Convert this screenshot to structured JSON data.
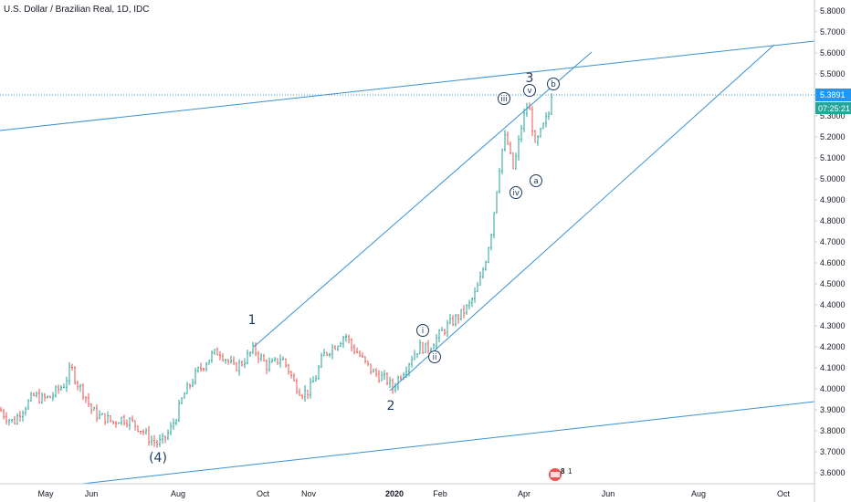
{
  "chart_data": {
    "type": "candlestick",
    "title": "U.S. Dollar / Brazilian Real, 1D, IDC",
    "y_ticks": [
      "5.8000",
      "5.7000",
      "5.6000",
      "5.5000",
      "5.3000",
      "5.2000",
      "5.1000",
      "5.0000",
      "4.9000",
      "4.8000",
      "4.7000",
      "4.6000",
      "4.5000",
      "4.4000",
      "4.3000",
      "4.2000",
      "4.1000",
      "4.0000",
      "3.9000",
      "3.8000",
      "3.7000",
      "3.6000"
    ],
    "x_ticks": [
      "May",
      "Jun",
      "Aug",
      "Oct",
      "Nov",
      "2020",
      "Feb",
      "Apr",
      "Jun",
      "Aug",
      "Oct"
    ],
    "ylim": [
      3.55,
      5.85
    ],
    "current_price": "5.3891",
    "countdown": "07:25:21",
    "colors": {
      "up": "#26a69a",
      "down": "#ef5350",
      "line": "#3a92d6",
      "label": "#1e3a5f",
      "price_tag": "#2196f3"
    },
    "price_path": [
      [
        0,
        3.9
      ],
      [
        8,
        3.86
      ],
      [
        15,
        3.84
      ],
      [
        22,
        3.89
      ],
      [
        30,
        3.93
      ],
      [
        38,
        3.97
      ],
      [
        45,
        3.95
      ],
      [
        55,
        3.96
      ],
      [
        62,
        3.99
      ],
      [
        70,
        4.02
      ],
      [
        78,
        4.1
      ],
      [
        84,
        4.03
      ],
      [
        92,
        3.98
      ],
      [
        100,
        3.9
      ],
      [
        108,
        3.87
      ],
      [
        116,
        3.86
      ],
      [
        124,
        3.84
      ],
      [
        132,
        3.86
      ],
      [
        140,
        3.85
      ],
      [
        148,
        3.83
      ],
      [
        156,
        3.8
      ],
      [
        164,
        3.76
      ],
      [
        172,
        3.74
      ],
      [
        178,
        3.75
      ],
      [
        186,
        3.8
      ],
      [
        194,
        3.88
      ],
      [
        200,
        3.96
      ],
      [
        208,
        4.02
      ],
      [
        216,
        4.08
      ],
      [
        224,
        4.12
      ],
      [
        232,
        4.16
      ],
      [
        240,
        4.18
      ],
      [
        248,
        4.14
      ],
      [
        256,
        4.1
      ],
      [
        264,
        4.12
      ],
      [
        272,
        4.16
      ],
      [
        278,
        4.19
      ],
      [
        285,
        4.15
      ],
      [
        292,
        4.11
      ],
      [
        300,
        4.12
      ],
      [
        308,
        4.15
      ],
      [
        315,
        4.1
      ],
      [
        322,
        4.03
      ],
      [
        330,
        3.98
      ],
      [
        338,
        3.99
      ],
      [
        346,
        4.06
      ],
      [
        354,
        4.16
      ],
      [
        362,
        4.19
      ],
      [
        370,
        4.22
      ],
      [
        378,
        4.26
      ],
      [
        385,
        4.2
      ],
      [
        392,
        4.17
      ],
      [
        400,
        4.12
      ],
      [
        408,
        4.08
      ],
      [
        416,
        4.06
      ],
      [
        424,
        4.04
      ],
      [
        430,
        4.0
      ],
      [
        436,
        4.05
      ],
      [
        444,
        4.1
      ],
      [
        452,
        4.16
      ],
      [
        460,
        4.2
      ],
      [
        468,
        4.19
      ],
      [
        474,
        4.22
      ],
      [
        482,
        4.26
      ],
      [
        490,
        4.3
      ],
      [
        498,
        4.33
      ],
      [
        506,
        4.36
      ],
      [
        514,
        4.4
      ],
      [
        520,
        4.45
      ],
      [
        526,
        4.52
      ],
      [
        532,
        4.62
      ],
      [
        538,
        4.75
      ],
      [
        542,
        4.88
      ],
      [
        546,
        5.03
      ],
      [
        550,
        5.14
      ],
      [
        554,
        5.21
      ],
      [
        558,
        5.12
      ],
      [
        562,
        5.05
      ],
      [
        566,
        5.12
      ],
      [
        570,
        5.23
      ],
      [
        574,
        5.3
      ],
      [
        578,
        5.36
      ],
      [
        582,
        5.28
      ],
      [
        586,
        5.15
      ],
      [
        590,
        5.2
      ],
      [
        594,
        5.24
      ],
      [
        598,
        5.28
      ],
      [
        602,
        5.32
      ],
      [
        606,
        5.39
      ]
    ]
  },
  "wave_labels": [
    {
      "text": "(4)",
      "circled": false
    },
    {
      "text": "1",
      "circled": false
    },
    {
      "text": "2",
      "circled": false
    },
    {
      "text": "3",
      "circled": false
    },
    {
      "text": "i",
      "circled": true
    },
    {
      "text": "ii",
      "circled": true
    },
    {
      "text": "iii",
      "circled": true
    },
    {
      "text": "iv",
      "circled": true
    },
    {
      "text": "v",
      "circled": true
    },
    {
      "text": "a",
      "circled": true
    },
    {
      "text": "b",
      "circled": true
    }
  ],
  "indicator": {
    "count": "8",
    "extra": "1"
  }
}
